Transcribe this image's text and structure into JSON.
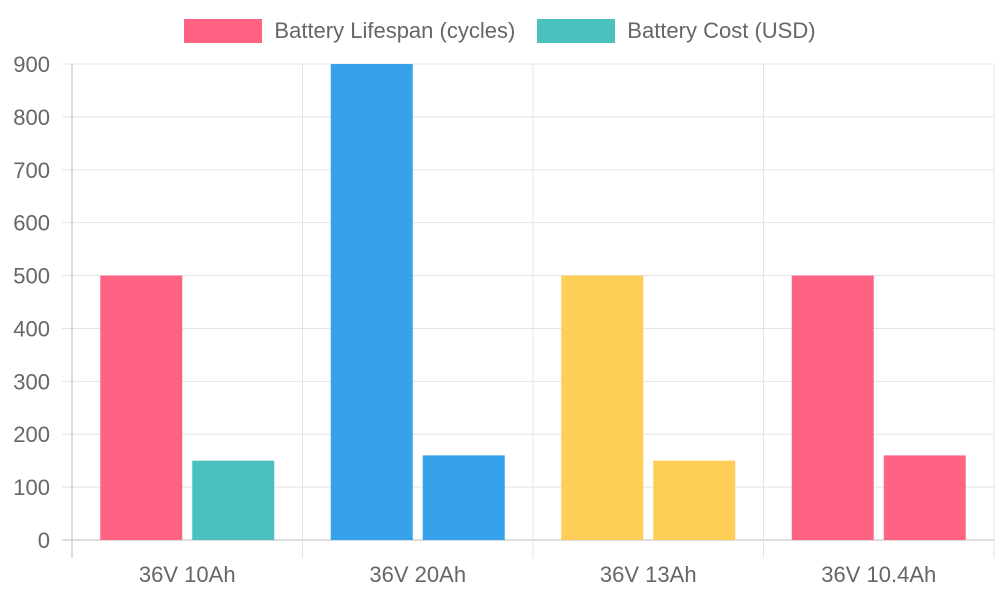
{
  "chart_data": {
    "type": "bar",
    "categories": [
      "36V 10Ah",
      "36V 20Ah",
      "36V 13Ah",
      "36V 10.4Ah"
    ],
    "series": [
      {
        "name": "Battery Lifespan (cycles)",
        "values": [
          500,
          900,
          500,
          500
        ]
      },
      {
        "name": "Battery Cost (USD)",
        "values": [
          150,
          160,
          150,
          160
        ]
      }
    ],
    "bar_colors": [
      [
        "#FF6384",
        "#4BC0C0"
      ],
      [
        "#36A2EB",
        "#36A2EB"
      ],
      [
        "#FFCE56",
        "#FFCE56"
      ],
      [
        "#FF6384",
        "#FF6384"
      ]
    ],
    "legend": {
      "position": "top",
      "items": [
        {
          "label": "Battery Lifespan (cycles)",
          "color": "#FF6384"
        },
        {
          "label": "Battery Cost (USD)",
          "color": "#4BC0C0"
        }
      ]
    },
    "ylim": [
      0,
      900
    ],
    "yticks": [
      0,
      100,
      200,
      300,
      400,
      500,
      600,
      700,
      800,
      900
    ],
    "grid": true,
    "title": "",
    "xlabel": "",
    "ylabel": ""
  }
}
